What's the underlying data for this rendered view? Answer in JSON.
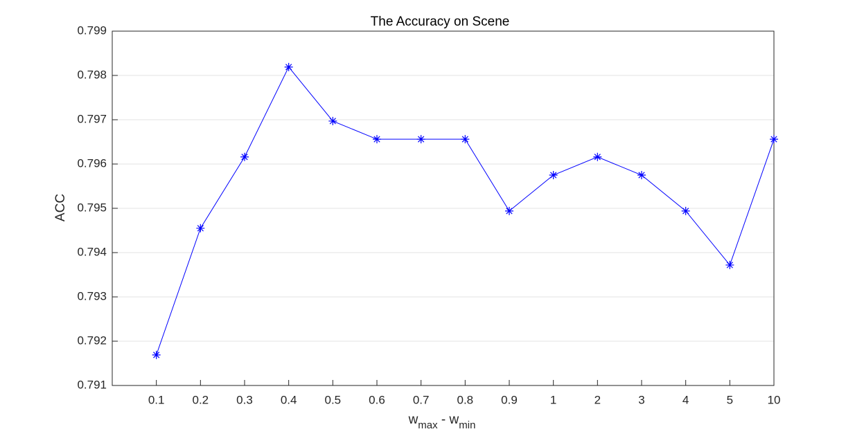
{
  "chart_data": {
    "type": "line",
    "title": "The Accuracy on Scene",
    "y_label": "ACC",
    "x_label": [
      "w",
      "max",
      " - w",
      "min"
    ],
    "categories": [
      "0.1",
      "0.2",
      "0.3",
      "0.4",
      "0.5",
      "0.6",
      "0.7",
      "0.8",
      "0.9",
      "1",
      "2",
      "3",
      "4",
      "5",
      "10"
    ],
    "values": [
      0.79169,
      0.79455,
      0.79616,
      0.79819,
      0.79697,
      0.79656,
      0.79656,
      0.79656,
      0.79494,
      0.79575,
      0.79616,
      0.79575,
      0.79494,
      0.79372,
      0.79656
    ],
    "color": "#0000ff",
    "marker": "asterisk",
    "ylim": [
      0.791,
      0.799
    ],
    "yticks": [
      0.791,
      0.792,
      0.793,
      0.794,
      0.795,
      0.796,
      0.797,
      0.798,
      0.799
    ],
    "grid": true
  }
}
